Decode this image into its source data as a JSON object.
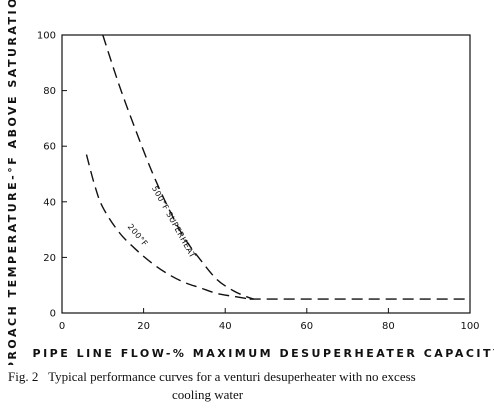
{
  "chart_data": {
    "type": "line",
    "xlabel": "PIPE LINE FLOW-% MAXIMUM DESUPERHEATER CAPACITY",
    "ylabel": "APPROACH TEMPERATURE-°F ABOVE SATURATION",
    "xlim": [
      0,
      100
    ],
    "ylim": [
      0,
      100
    ],
    "xticks": [
      0,
      20,
      40,
      60,
      80,
      100
    ],
    "yticks": [
      0,
      20,
      40,
      60,
      80,
      100
    ],
    "grid": false,
    "line_style": "dashed",
    "series": [
      {
        "name": "500°F SUPERHEAT",
        "x": [
          10,
          14,
          18,
          22,
          26,
          30,
          34,
          38,
          42,
          45,
          47
        ],
        "y": [
          100,
          82,
          66,
          51,
          38,
          27,
          19,
          12,
          8,
          6,
          5
        ]
      },
      {
        "name": "200°F",
        "x": [
          6,
          8,
          10,
          14,
          18,
          22,
          26,
          30,
          34,
          38,
          42,
          46
        ],
        "y": [
          57,
          46,
          38,
          29,
          23,
          18,
          14,
          11,
          9,
          7,
          6,
          5
        ]
      },
      {
        "name": "",
        "x": [
          46,
          100
        ],
        "y": [
          5,
          5
        ]
      }
    ]
  },
  "caption": {
    "label": "Fig. 2",
    "line1": "Typical performance curves for a venturi desuperheater with no excess",
    "line2": "cooling water"
  }
}
